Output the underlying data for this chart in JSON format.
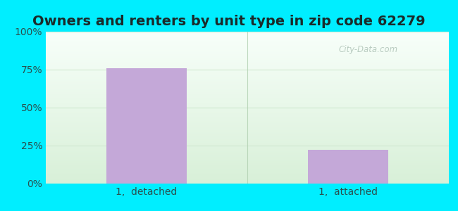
{
  "title": "Owners and renters by unit type in zip code 62279",
  "categories": [
    "1,  detached",
    "1,  attached"
  ],
  "values": [
    76,
    22
  ],
  "bar_color": "#c4a8d8",
  "ylim": [
    0,
    100
  ],
  "yticks": [
    0,
    25,
    50,
    75,
    100
  ],
  "yticklabels": [
    "0%",
    "25%",
    "50%",
    "75%",
    "100%"
  ],
  "title_fontsize": 14,
  "tick_fontsize": 10,
  "bg_outer": "#00eeff",
  "bg_inner_top": "#f8fffa",
  "bg_inner_bottom": "#d8f0d8",
  "watermark_text": "City-Data.com",
  "watermark_color": "#b0c4b8",
  "grid_color": "#d0e8d0",
  "separator_color": "#b0d0b0",
  "text_color": "#2a5050"
}
